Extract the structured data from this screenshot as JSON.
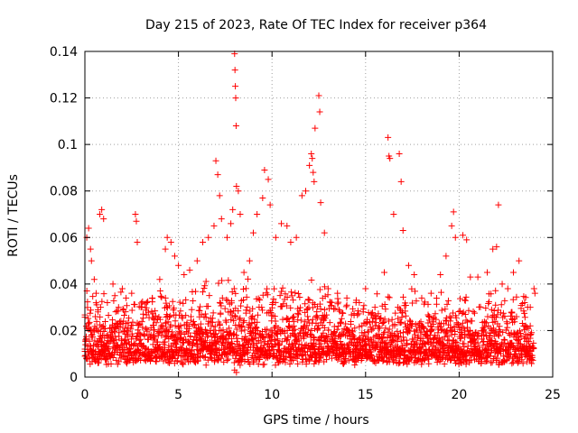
{
  "chart_data": {
    "type": "scatter",
    "title": "Day 215 of 2023, Rate Of TEC Index for receiver p364",
    "xlabel": "GPS time / hours",
    "ylabel": "ROTI / TECUs",
    "xlim": [
      0,
      25
    ],
    "ylim": [
      0,
      0.14
    ],
    "x_ticks": [
      0,
      5,
      10,
      15,
      20,
      25
    ],
    "x_tick_labels": [
      "0",
      "5",
      "10",
      "15",
      "20",
      "25"
    ],
    "y_ticks": [
      0,
      0.02,
      0.04,
      0.06,
      0.08,
      0.1,
      0.12,
      0.14
    ],
    "y_tick_labels": [
      "0",
      "0.02",
      "0.04",
      "0.06",
      "0.08",
      "0.1",
      "0.12",
      "0.14"
    ],
    "grid": true,
    "marker": "+",
    "series": [
      {
        "name": "ROTI",
        "color": "#ff0000",
        "points": [
          [
            0.0,
            0.012
          ],
          [
            0.1,
            0.06
          ],
          [
            0.2,
            0.064
          ],
          [
            0.3,
            0.055
          ],
          [
            0.35,
            0.05
          ],
          [
            0.5,
            0.042
          ],
          [
            0.6,
            0.036
          ],
          [
            0.7,
            0.028
          ],
          [
            0.8,
            0.07
          ],
          [
            0.9,
            0.072
          ],
          [
            1.0,
            0.068
          ],
          [
            1.2,
            0.032
          ],
          [
            1.5,
            0.04
          ],
          [
            1.6,
            0.035
          ],
          [
            1.8,
            0.03
          ],
          [
            2.0,
            0.038
          ],
          [
            2.2,
            0.034
          ],
          [
            2.5,
            0.036
          ],
          [
            2.7,
            0.07
          ],
          [
            2.75,
            0.067
          ],
          [
            2.8,
            0.058
          ],
          [
            3.0,
            0.03
          ],
          [
            3.3,
            0.032
          ],
          [
            3.6,
            0.034
          ],
          [
            4.0,
            0.042
          ],
          [
            4.3,
            0.055
          ],
          [
            4.4,
            0.06
          ],
          [
            4.6,
            0.058
          ],
          [
            4.8,
            0.052
          ],
          [
            5.0,
            0.048
          ],
          [
            5.3,
            0.044
          ],
          [
            5.6,
            0.046
          ],
          [
            6.0,
            0.05
          ],
          [
            6.3,
            0.058
          ],
          [
            6.6,
            0.06
          ],
          [
            6.9,
            0.065
          ],
          [
            7.0,
            0.093
          ],
          [
            7.1,
            0.087
          ],
          [
            7.2,
            0.078
          ],
          [
            7.3,
            0.068
          ],
          [
            7.6,
            0.06
          ],
          [
            7.8,
            0.066
          ],
          [
            7.9,
            0.072
          ],
          [
            8.0,
            0.139
          ],
          [
            8.02,
            0.132
          ],
          [
            8.04,
            0.125
          ],
          [
            8.06,
            0.12
          ],
          [
            8.08,
            0.108
          ],
          [
            8.1,
            0.082
          ],
          [
            8.2,
            0.08
          ],
          [
            8.3,
            0.07
          ],
          [
            8.0,
            0.003
          ],
          [
            8.1,
            0.002
          ],
          [
            8.5,
            0.045
          ],
          [
            8.8,
            0.05
          ],
          [
            9.0,
            0.062
          ],
          [
            9.2,
            0.07
          ],
          [
            9.5,
            0.077
          ],
          [
            9.6,
            0.089
          ],
          [
            9.8,
            0.085
          ],
          [
            9.9,
            0.074
          ],
          [
            10.2,
            0.06
          ],
          [
            10.5,
            0.066
          ],
          [
            10.8,
            0.065
          ],
          [
            11.0,
            0.058
          ],
          [
            11.3,
            0.06
          ],
          [
            11.6,
            0.078
          ],
          [
            11.8,
            0.08
          ],
          [
            12.0,
            0.091
          ],
          [
            12.1,
            0.096
          ],
          [
            12.15,
            0.094
          ],
          [
            12.2,
            0.088
          ],
          [
            12.25,
            0.084
          ],
          [
            12.3,
            0.107
          ],
          [
            12.5,
            0.121
          ],
          [
            12.55,
            0.114
          ],
          [
            12.6,
            0.075
          ],
          [
            12.8,
            0.062
          ],
          [
            13.0,
            0.038
          ],
          [
            13.5,
            0.036
          ],
          [
            14.0,
            0.034
          ],
          [
            14.5,
            0.033
          ],
          [
            15.0,
            0.038
          ],
          [
            15.5,
            0.03
          ],
          [
            16.0,
            0.045
          ],
          [
            16.2,
            0.103
          ],
          [
            16.25,
            0.095
          ],
          [
            16.3,
            0.094
          ],
          [
            16.5,
            0.07
          ],
          [
            16.8,
            0.096
          ],
          [
            16.9,
            0.084
          ],
          [
            17.0,
            0.063
          ],
          [
            17.3,
            0.048
          ],
          [
            17.6,
            0.044
          ],
          [
            18.0,
            0.034
          ],
          [
            18.5,
            0.036
          ],
          [
            19.0,
            0.044
          ],
          [
            19.3,
            0.052
          ],
          [
            19.6,
            0.065
          ],
          [
            19.7,
            0.071
          ],
          [
            19.8,
            0.06
          ],
          [
            20.2,
            0.061
          ],
          [
            20.4,
            0.059
          ],
          [
            20.6,
            0.043
          ],
          [
            21.0,
            0.043
          ],
          [
            21.5,
            0.045
          ],
          [
            21.8,
            0.055
          ],
          [
            22.0,
            0.056
          ],
          [
            22.1,
            0.074
          ],
          [
            22.3,
            0.04
          ],
          [
            22.6,
            0.038
          ],
          [
            22.9,
            0.045
          ],
          [
            23.2,
            0.05
          ],
          [
            23.5,
            0.032
          ],
          [
            23.8,
            0.03
          ],
          [
            24.0,
            0.038
          ],
          [
            24.05,
            0.036
          ]
        ]
      }
    ],
    "dense_band": {
      "series": "ROTI",
      "x_range": [
        0,
        24
      ],
      "typical_range": [
        0.005,
        0.035
      ],
      "step": 0.035
    }
  }
}
